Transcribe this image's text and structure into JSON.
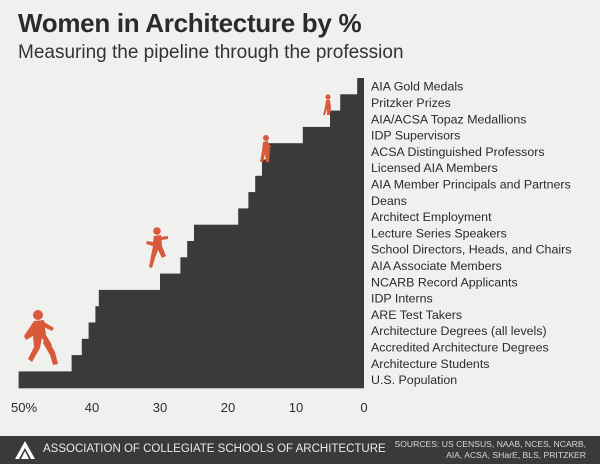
{
  "header": {
    "title": "Women in Architecture by %",
    "subtitle": "Measuring the pipeline through the profession"
  },
  "footer": {
    "org_name": "ASSOCIATION OF COLLEGIATE SCHOOLS OF ARCHITECTURE",
    "sources_line1": "SOURCES: US CENSUS, NAAB, NCES, NCARB,",
    "sources_line2": "AIA, ACSA, SHarE, BLS, PRITZKER"
  },
  "colors": {
    "bar": "#3a3a3a",
    "figure": "#d9593b",
    "background": "#f0f0ee"
  },
  "chart_data": {
    "type": "bar",
    "orientation": "horizontal",
    "x_reversed": true,
    "xlim": [
      0,
      50
    ],
    "x_ticks": [
      "50%",
      "40",
      "30",
      "20",
      "10",
      "0"
    ],
    "categories": [
      "AIA Gold Medals",
      "Pritzker Prizes",
      "AIA/ACSA Topaz Medallions",
      "IDP Supervisors",
      "ACSA Distinguished Professors",
      "Licensed AIA Members",
      "AIA Member Principals and Partners",
      "Deans",
      "Architect Employment",
      "Lecture Series Speakers",
      "School Directors, Heads, and Chairs",
      "AIA Associate Members",
      "NCARB Record Applicants",
      "IDP Interns",
      "ARE Test Takers",
      "Architecture Degrees (all levels)",
      "Accredited Architecture Degrees",
      "Architecture Students",
      "U.S. Population"
    ],
    "values": [
      1,
      3.5,
      5,
      9,
      14,
      15,
      16,
      17,
      18.5,
      25,
      26,
      27,
      30,
      39,
      39.5,
      40.5,
      41.5,
      43,
      50.8
    ],
    "grid": false,
    "legend": "none"
  }
}
